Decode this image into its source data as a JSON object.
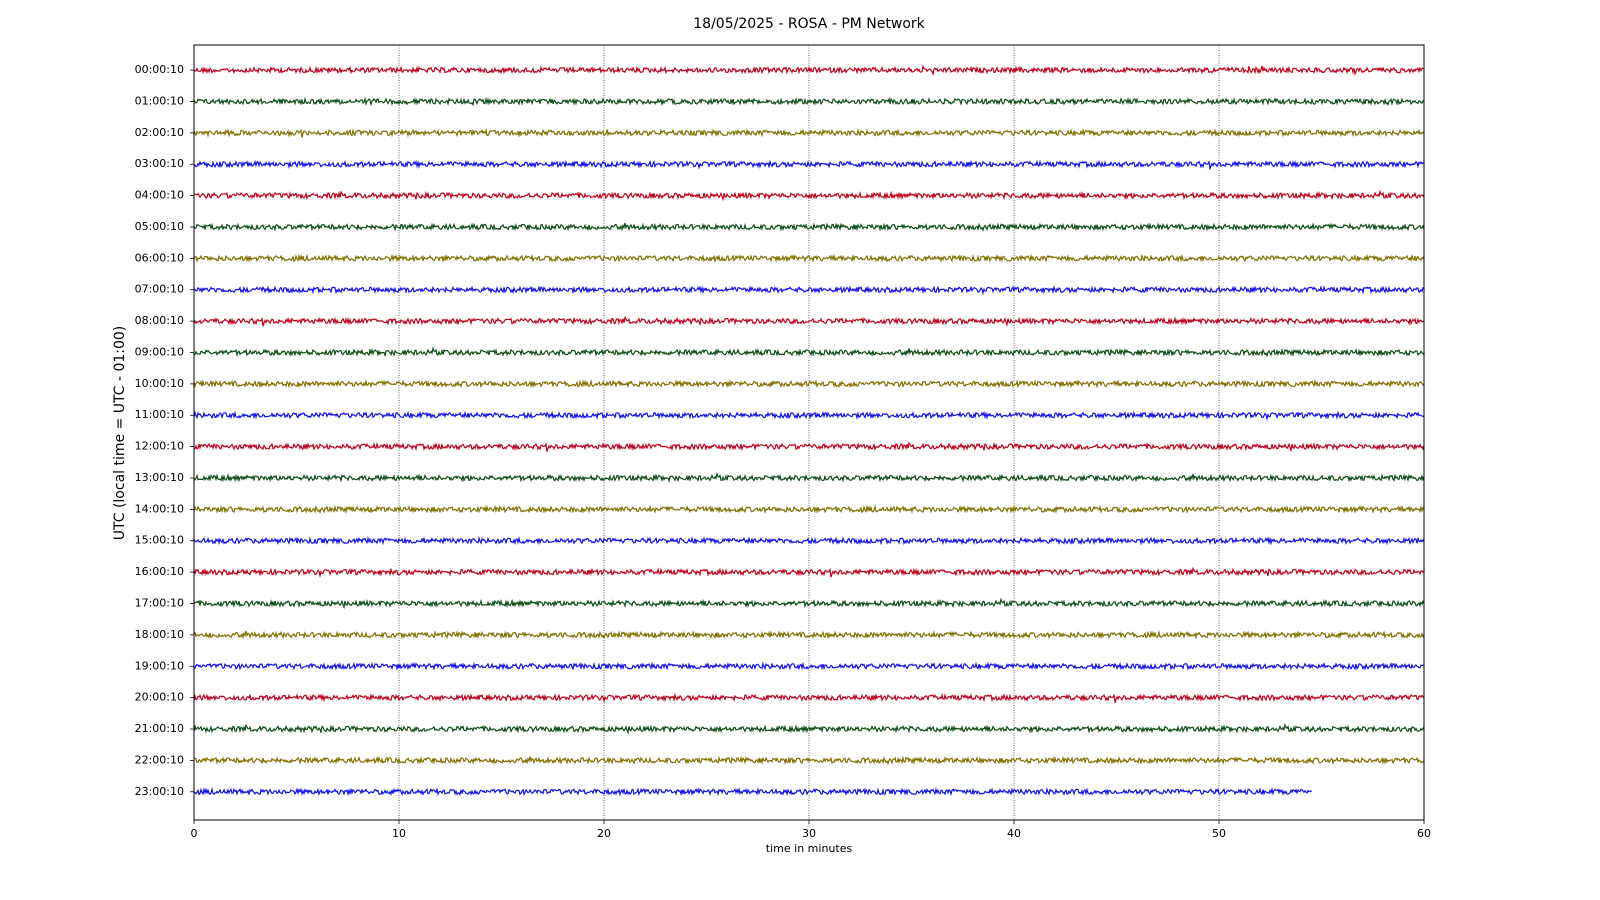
{
  "chart_data": {
    "type": "helicorder",
    "title": "18/05/2025 - ROSA - PM Network",
    "xlabel": "time in minutes",
    "ylabel": "UTC (local time = UTC - 01:00)",
    "xlim": [
      0,
      60
    ],
    "xticks": [
      0,
      10,
      20,
      30,
      40,
      50,
      60
    ],
    "grid": true,
    "traces": [
      {
        "label": "00:00:10",
        "color": "#c00018",
        "x": [
          0,
          60
        ]
      },
      {
        "label": "01:00:10",
        "color": "#0b4d16",
        "x": [
          0,
          60
        ]
      },
      {
        "label": "02:00:10",
        "color": "#807000",
        "x": [
          0,
          60
        ]
      },
      {
        "label": "03:00:10",
        "color": "#1010f0",
        "x": [
          0,
          60
        ]
      },
      {
        "label": "04:00:10",
        "color": "#c00018",
        "x": [
          0,
          60
        ]
      },
      {
        "label": "05:00:10",
        "color": "#0b4d16",
        "x": [
          0,
          60
        ]
      },
      {
        "label": "06:00:10",
        "color": "#807000",
        "x": [
          0,
          60
        ]
      },
      {
        "label": "07:00:10",
        "color": "#1010f0",
        "x": [
          0,
          60
        ]
      },
      {
        "label": "08:00:10",
        "color": "#c00018",
        "x": [
          0,
          60
        ]
      },
      {
        "label": "09:00:10",
        "color": "#0b4d16",
        "x": [
          0,
          60
        ]
      },
      {
        "label": "10:00:10",
        "color": "#807000",
        "x": [
          0,
          60
        ]
      },
      {
        "label": "11:00:10",
        "color": "#1010f0",
        "x": [
          0,
          60
        ]
      },
      {
        "label": "12:00:10",
        "color": "#c00018",
        "x": [
          0,
          60
        ]
      },
      {
        "label": "13:00:10",
        "color": "#0b4d16",
        "x": [
          0,
          60
        ]
      },
      {
        "label": "14:00:10",
        "color": "#807000",
        "x": [
          0,
          60
        ]
      },
      {
        "label": "15:00:10",
        "color": "#1010f0",
        "x": [
          0,
          60
        ]
      },
      {
        "label": "16:00:10",
        "color": "#c00018",
        "x": [
          0,
          60
        ]
      },
      {
        "label": "17:00:10",
        "color": "#0b4d16",
        "x": [
          0,
          60
        ]
      },
      {
        "label": "18:00:10",
        "color": "#807000",
        "x": [
          0,
          60
        ]
      },
      {
        "label": "19:00:10",
        "color": "#1010f0",
        "x": [
          0,
          60
        ]
      },
      {
        "label": "20:00:10",
        "color": "#c00018",
        "x": [
          0,
          60
        ]
      },
      {
        "label": "21:00:10",
        "color": "#0b4d16",
        "x": [
          0,
          60
        ]
      },
      {
        "label": "22:00:10",
        "color": "#807000",
        "x": [
          0,
          60
        ]
      },
      {
        "label": "23:00:10",
        "color": "#1010f0",
        "x": [
          0,
          54.5
        ]
      }
    ]
  }
}
